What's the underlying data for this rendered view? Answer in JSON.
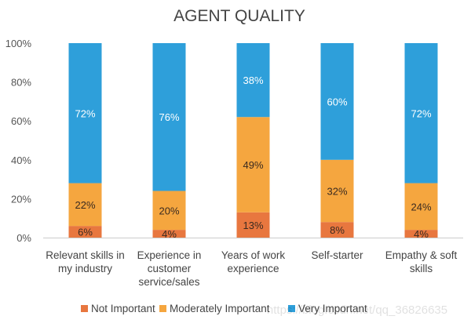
{
  "chart_data": {
    "type": "bar",
    "stacked": true,
    "title": "AGENT QUALITY",
    "categories": [
      [
        "Relevant skills in",
        "my industry"
      ],
      [
        "Experience in",
        "customer",
        "service/sales"
      ],
      [
        "Years of work",
        "experience"
      ],
      [
        "Self-starter"
      ],
      [
        "Empathy & soft",
        "skills"
      ]
    ],
    "series": [
      {
        "name": "Not Important",
        "color": "#E8773F",
        "label_color": "#3a2a20",
        "values": [
          6,
          4,
          13,
          8,
          4
        ]
      },
      {
        "name": "Moderately Important",
        "color": "#F5A63F",
        "label_color": "#3a2a20",
        "values": [
          22,
          20,
          49,
          32,
          24
        ]
      },
      {
        "name": "Very Important",
        "color": "#2E9FDA",
        "label_color": "#ffffff",
        "values": [
          72,
          76,
          38,
          60,
          72
        ]
      }
    ],
    "ylim": [
      0,
      100
    ],
    "yticks": [
      "0%",
      "20%",
      "40%",
      "60%",
      "80%",
      "100%"
    ],
    "grid": false,
    "legend": "bottom"
  },
  "watermark": "https://blog.csdn.net/qq_36826635"
}
